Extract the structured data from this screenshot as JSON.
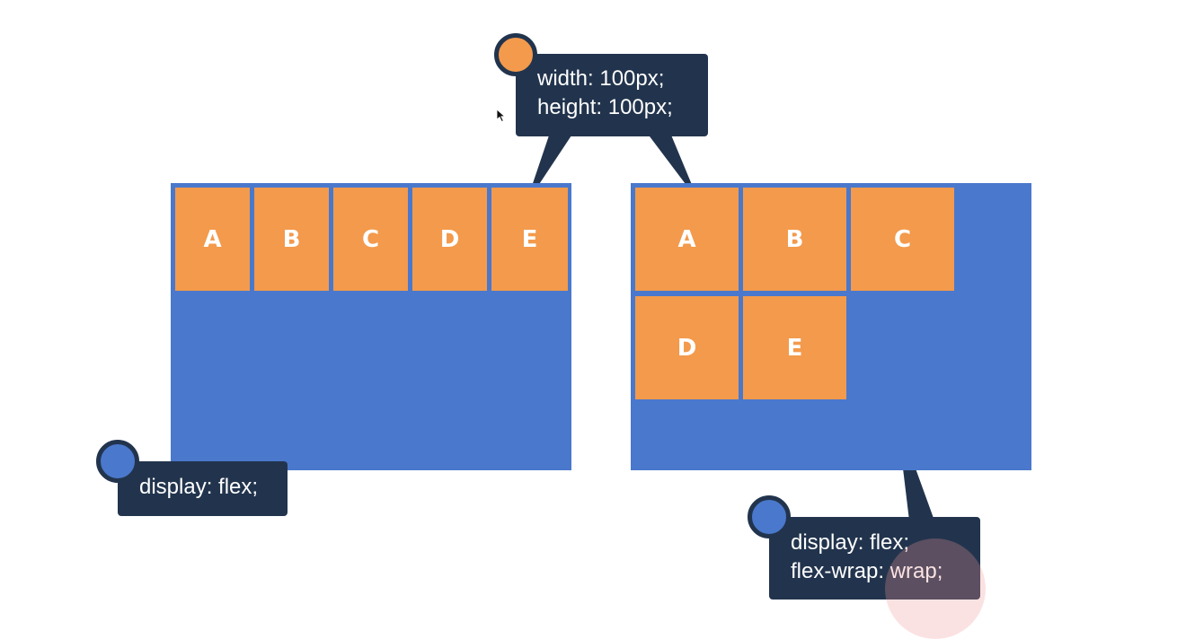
{
  "colors": {
    "container": "#4a78cc",
    "item": "#f39a4c",
    "callout": "#22344d",
    "dot_orange": "#f39a4c",
    "dot_blue": "#4a78cc"
  },
  "left_diagram": {
    "items": [
      "A",
      "B",
      "C",
      "D",
      "E"
    ]
  },
  "right_diagram": {
    "items": [
      "A",
      "B",
      "C",
      "D",
      "E"
    ]
  },
  "callouts": {
    "item_size": {
      "lines": [
        "width: 100px;",
        "height: 100px;"
      ],
      "dot_color": "orange"
    },
    "flex": {
      "lines": [
        "display: flex;"
      ],
      "dot_color": "blue"
    },
    "flex_wrap": {
      "lines": [
        "display: flex;",
        "flex-wrap: wrap;"
      ],
      "dot_color": "blue"
    }
  }
}
